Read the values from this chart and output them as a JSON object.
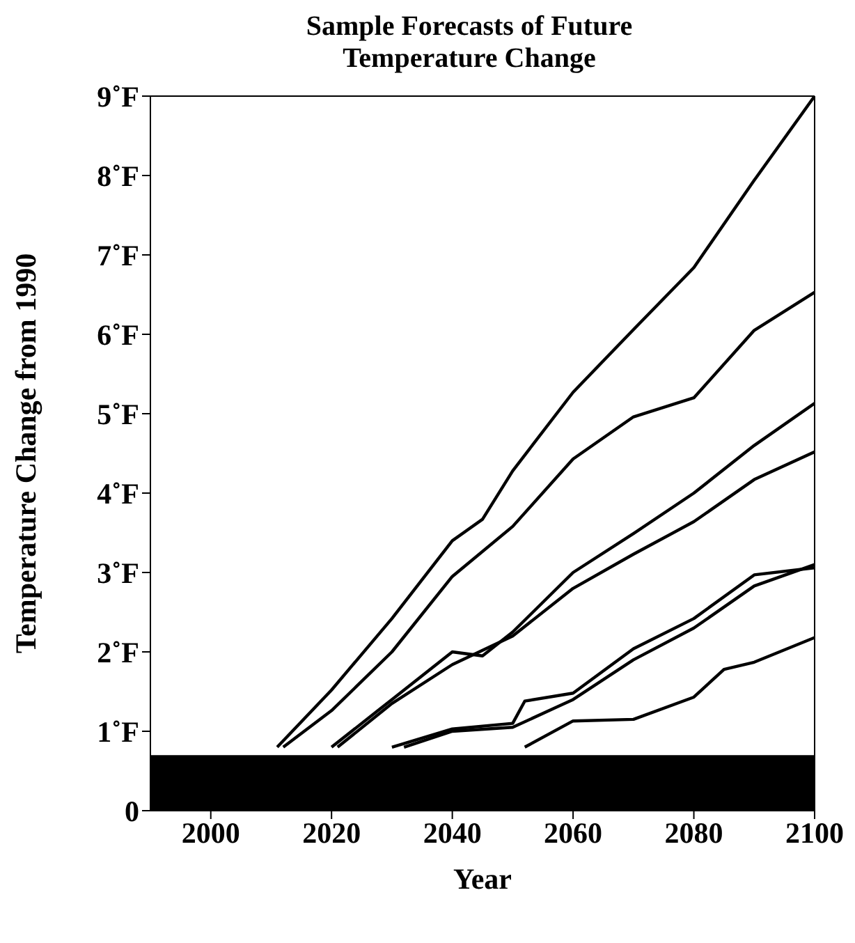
{
  "chart_data": {
    "type": "line",
    "title": "Sample Forecasts of Future Temperature Change",
    "xlabel": "Year",
    "ylabel": "Temperature Change from 1990",
    "xlim": [
      1990,
      2100
    ],
    "xticks": [
      2000,
      2020,
      2040,
      2060,
      2080,
      2100
    ],
    "ylim": [
      0,
      9
    ],
    "yticks": [
      0,
      {
        "value": 1,
        "label": "1˚F"
      },
      {
        "value": 2,
        "label": "2˚F"
      },
      {
        "value": 3,
        "label": "3˚F"
      },
      {
        "value": 4,
        "label": "4˚F"
      },
      {
        "value": 5,
        "label": "5˚F"
      },
      {
        "value": 6,
        "label": "6˚F"
      },
      {
        "value": 7,
        "label": "7˚F"
      },
      {
        "value": 8,
        "label": "8˚F"
      },
      {
        "value": 9,
        "label": "9˚F"
      }
    ],
    "grid": false,
    "marker": "none",
    "line_style": "solid",
    "bands": [
      {
        "axis": "y",
        "from": 0,
        "to": 0.7,
        "color": "#000000"
      }
    ],
    "series": [
      {
        "color": "#000000",
        "x": [
          2011,
          2020,
          2030,
          2040,
          2045,
          2050,
          2060,
          2070,
          2080,
          2090,
          2100
        ],
        "values": [
          0.8,
          1.52,
          2.42,
          3.4,
          3.67,
          4.28,
          5.27,
          6.06,
          6.84,
          7.94,
          9.0
        ]
      },
      {
        "color": "#000000",
        "x": [
          2012,
          2020,
          2030,
          2040,
          2050,
          2060,
          2070,
          2080,
          2090,
          2100
        ],
        "values": [
          0.8,
          1.26,
          2.0,
          2.95,
          3.58,
          4.43,
          4.96,
          5.2,
          6.05,
          6.53
        ]
      },
      {
        "color": "#000000",
        "x": [
          2020,
          2030,
          2040,
          2045,
          2050,
          2060,
          2070,
          2080,
          2090,
          2100
        ],
        "values": [
          0.8,
          1.4,
          2.0,
          1.95,
          2.25,
          3.0,
          3.49,
          4.0,
          4.6,
          5.13
        ]
      },
      {
        "color": "#000000",
        "x": [
          2021,
          2030,
          2040,
          2050,
          2060,
          2070,
          2080,
          2090,
          2100
        ],
        "values": [
          0.8,
          1.35,
          1.84,
          2.2,
          2.8,
          3.23,
          3.64,
          4.17,
          4.52
        ]
      },
      {
        "color": "#000000",
        "x": [
          2030,
          2040,
          2050,
          2052,
          2060,
          2070,
          2080,
          2090,
          2100
        ],
        "values": [
          0.8,
          1.03,
          1.1,
          1.38,
          1.48,
          2.04,
          2.42,
          2.97,
          3.06
        ]
      },
      {
        "color": "#000000",
        "x": [
          2032,
          2040,
          2050,
          2060,
          2070,
          2080,
          2090,
          2100
        ],
        "values": [
          0.8,
          1.0,
          1.05,
          1.4,
          1.9,
          2.3,
          2.83,
          3.1
        ]
      },
      {
        "color": "#000000",
        "x": [
          2052,
          2060,
          2070,
          2080,
          2085,
          2090,
          2100
        ],
        "values": [
          0.8,
          1.13,
          1.15,
          1.43,
          1.78,
          1.87,
          2.18
        ]
      }
    ]
  }
}
